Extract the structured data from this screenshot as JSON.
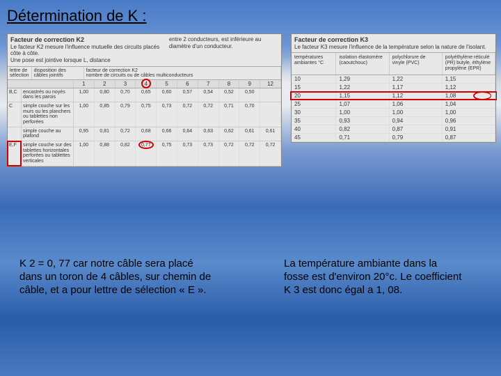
{
  "title": "Détermination de K :",
  "k2": {
    "header_bold": "Facteur de correction K2",
    "header_line1": "Le facteur K2 mesure l'influence mutuelle des circuits placés côte à côte.",
    "header_line2": "Une pose est jointive lorsque L, distance",
    "header_right": "entre 2 conducteurs, est inférieure au diamètre d'un conducteur.",
    "sub_left1": "lettre de sélection",
    "sub_left2": "disposition des câbles jointifs",
    "sub_right": "facteur de correction K2",
    "sub_right2": "nombre de circuits ou de câbles multiconducteurs",
    "num_labels": [
      "1",
      "2",
      "3",
      "4",
      "5",
      "6",
      "7",
      "8",
      "9",
      "12"
    ],
    "circled_col": 3,
    "rows": [
      {
        "letter": "B,C",
        "desc": "encastrés ou noyés dans les parois",
        "vals": [
          "1,00",
          "0,80",
          "0,70",
          "0,65",
          "0,60",
          "0,57",
          "0,54",
          "0,52",
          "0,50",
          ""
        ]
      },
      {
        "letter": "C",
        "desc": "simple couche sur les murs ou les planchers ou tablettes non perforées",
        "vals": [
          "1,00",
          "0,85",
          "0,79",
          "0,75",
          "0,73",
          "0,72",
          "0,72",
          "0,71",
          "0,70",
          ""
        ]
      },
      {
        "letter": "",
        "desc": "simple couche au plafond",
        "vals": [
          "0,95",
          "0,81",
          "0,72",
          "0,68",
          "0,66",
          "0,64",
          "0,63",
          "0,62",
          "0,61",
          "0,61"
        ]
      },
      {
        "letter": "E,F",
        "desc": "simple couche sur des tablettes horizontales perforées ou tablettes verticales",
        "vals": [
          "1,00",
          "0,88",
          "0,82",
          "0,77",
          "0,75",
          "0,73",
          "0,73",
          "0,72",
          "0,72",
          "0,72"
        ],
        "highlight_val_idx": 3
      }
    ],
    "letter_highlight_row": 3,
    "circle_color": "#d00000"
  },
  "k3": {
    "header_bold": "Facteur de correction K3",
    "header_sub": "Le facteur K3 mesure l'influence de la température selon la nature de l'isolant.",
    "col_headers": [
      "températures ambiantes °C",
      "isolation élastomère (caoutchouc)",
      "polychlorure de vinyle (PVC)",
      "polyéthylène réticulé (PR) butyle, éthylène propylène (EPR)"
    ],
    "rows": [
      {
        "t": "10",
        "v": [
          "1,29",
          "1,22",
          "1,15"
        ]
      },
      {
        "t": "15",
        "v": [
          "1,22",
          "1,17",
          "1,12"
        ]
      },
      {
        "t": "20",
        "v": [
          "1,15",
          "1,12",
          "1,08"
        ],
        "highlight": true
      },
      {
        "t": "25",
        "v": [
          "1,07",
          "1,06",
          "1,04"
        ]
      },
      {
        "t": "30",
        "v": [
          "1,00",
          "1,00",
          "1,00"
        ]
      },
      {
        "t": "35",
        "v": [
          "0,93",
          "0,94",
          "0,96"
        ]
      },
      {
        "t": "40",
        "v": [
          "0,82",
          "0,87",
          "0,91"
        ]
      },
      {
        "t": "45",
        "v": [
          "0,71",
          "0,79",
          "0,87"
        ]
      }
    ],
    "highlight_color": "#d00000"
  },
  "caption_left": "K 2 = 0, 77 car notre câble sera placé dans un toron de 4 câbles, sur chemin de câble, et a pour lettre de sélection « E ».",
  "caption_right": "La température ambiante dans la fosse est d'environ 20°c. Le coefficient K 3 est donc égal a 1, 08."
}
